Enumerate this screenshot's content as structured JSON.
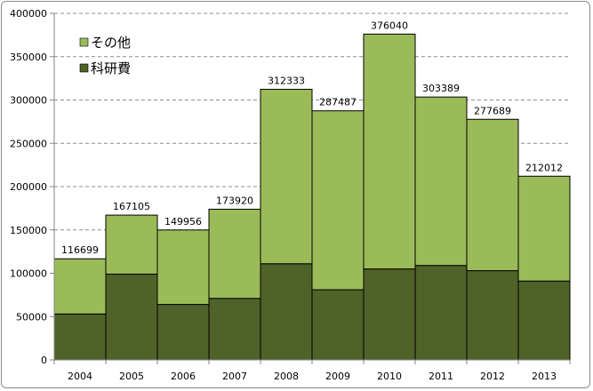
{
  "chart_data": {
    "type": "bar",
    "stacked": true,
    "categories": [
      "2004",
      "2005",
      "2006",
      "2007",
      "2008",
      "2009",
      "2010",
      "2011",
      "2012",
      "2013"
    ],
    "series": [
      {
        "name": "科研費",
        "color": "#4f6228",
        "values": [
          53000,
          99000,
          64000,
          71000,
          111000,
          81000,
          105000,
          109000,
          103000,
          91000
        ]
      },
      {
        "name": "その他",
        "color": "#9bbb59",
        "values": [
          63699,
          68105,
          85956,
          102920,
          201333,
          206487,
          271040,
          194389,
          174689,
          121012
        ]
      }
    ],
    "totals": [
      "116699",
      "167105",
      "149956",
      "173920",
      "312333",
      "287487",
      "376040",
      "303389",
      "277689",
      "212012"
    ],
    "ylim": [
      0,
      400000
    ],
    "yticks": [
      "0",
      "50000",
      "100000",
      "150000",
      "200000",
      "250000",
      "300000",
      "350000",
      "400000"
    ],
    "grid": true,
    "legend_position": "top-left",
    "legend": [
      {
        "label": "その他",
        "color": "#9bbb59"
      },
      {
        "label": "科研費",
        "color": "#4f6228"
      }
    ]
  }
}
